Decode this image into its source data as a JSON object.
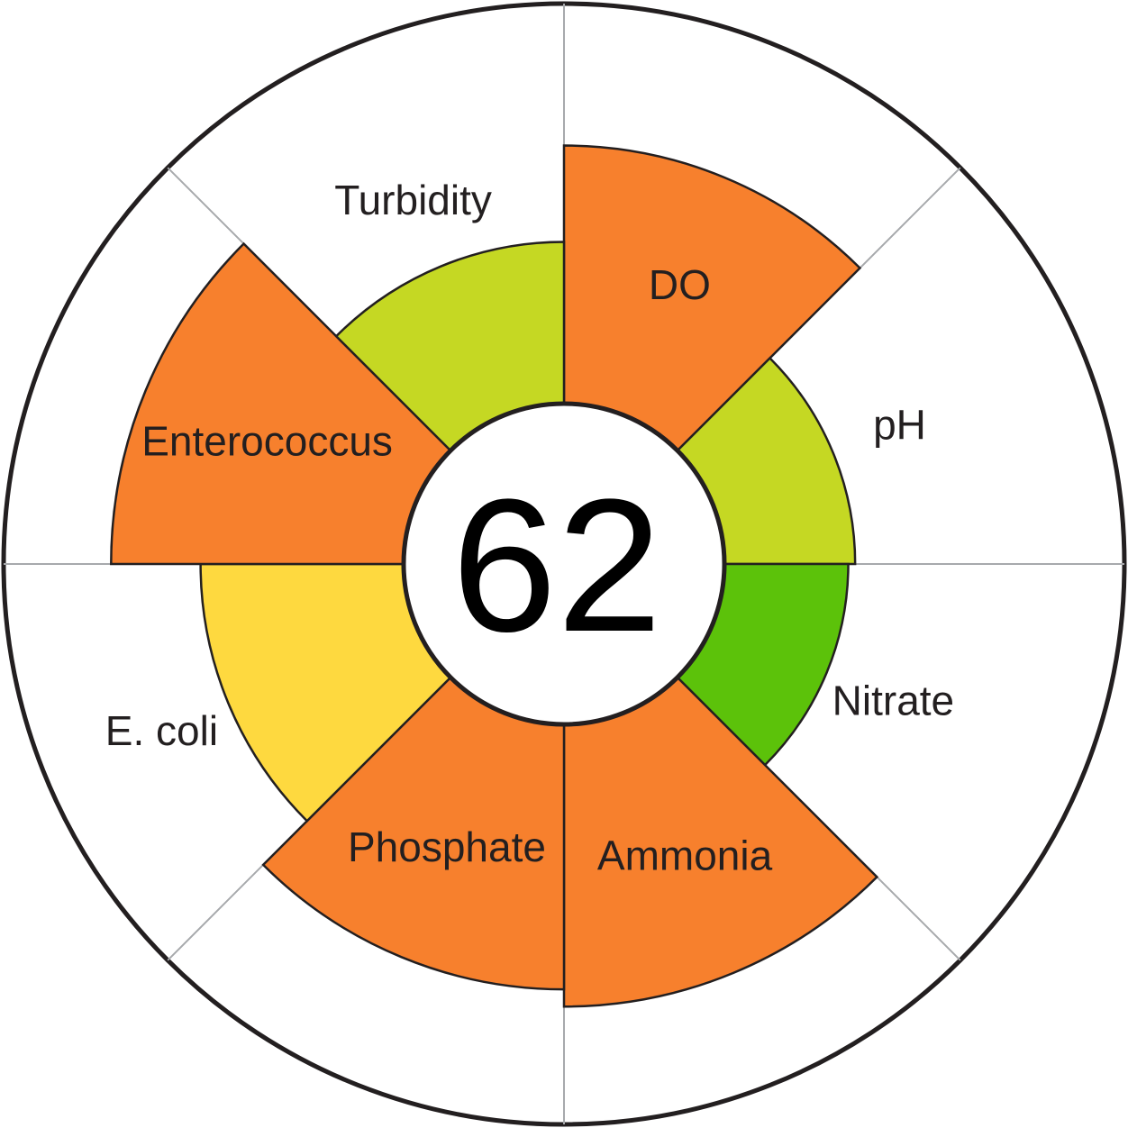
{
  "chart_data": {
    "type": "polar-area",
    "scale_max": 100,
    "score": "62",
    "segments": [
      {
        "label": "DO",
        "value": 75,
        "color": "#f7802d"
      },
      {
        "label": "pH",
        "value": 38,
        "color": "#c5d823"
      },
      {
        "label": "Nitrate",
        "value": 36,
        "color": "#5cc20a"
      },
      {
        "label": "Ammonia",
        "value": 82,
        "color": "#f7802d"
      },
      {
        "label": "Phosphate",
        "value": 77,
        "color": "#f7802d"
      },
      {
        "label": "E. coli",
        "value": 59,
        "color": "#fed93f"
      },
      {
        "label": "Enterococcus",
        "value": 85,
        "color": "#f7802d"
      },
      {
        "label": "Turbidity",
        "value": 47,
        "color": "#c5d823"
      }
    ]
  }
}
